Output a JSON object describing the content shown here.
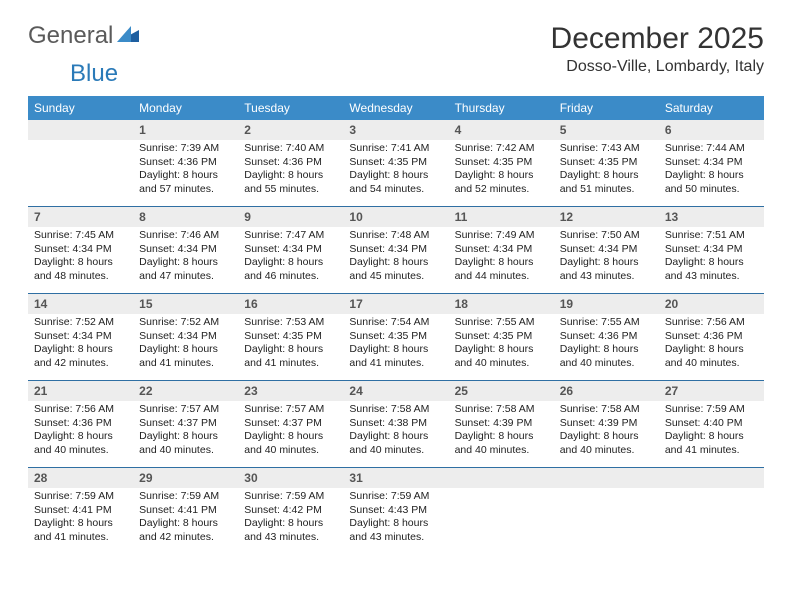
{
  "logo": {
    "general": "General",
    "blue": "Blue"
  },
  "title": "December 2025",
  "location": "Dosso-Ville, Lombardy, Italy",
  "colors": {
    "header_bg": "#3b8bc8",
    "header_text": "#ffffff",
    "row_border": "#2f6fa3",
    "daynum_bg": "#ededed",
    "logo_gray": "#5a5a5a",
    "logo_blue": "#2a7ab8"
  },
  "weekdays": [
    "Sunday",
    "Monday",
    "Tuesday",
    "Wednesday",
    "Thursday",
    "Friday",
    "Saturday"
  ],
  "weeks": [
    [
      {
        "n": "",
        "sr": "",
        "ss": "",
        "dl": ""
      },
      {
        "n": "1",
        "sr": "Sunrise: 7:39 AM",
        "ss": "Sunset: 4:36 PM",
        "dl": "Daylight: 8 hours and 57 minutes."
      },
      {
        "n": "2",
        "sr": "Sunrise: 7:40 AM",
        "ss": "Sunset: 4:36 PM",
        "dl": "Daylight: 8 hours and 55 minutes."
      },
      {
        "n": "3",
        "sr": "Sunrise: 7:41 AM",
        "ss": "Sunset: 4:35 PM",
        "dl": "Daylight: 8 hours and 54 minutes."
      },
      {
        "n": "4",
        "sr": "Sunrise: 7:42 AM",
        "ss": "Sunset: 4:35 PM",
        "dl": "Daylight: 8 hours and 52 minutes."
      },
      {
        "n": "5",
        "sr": "Sunrise: 7:43 AM",
        "ss": "Sunset: 4:35 PM",
        "dl": "Daylight: 8 hours and 51 minutes."
      },
      {
        "n": "6",
        "sr": "Sunrise: 7:44 AM",
        "ss": "Sunset: 4:34 PM",
        "dl": "Daylight: 8 hours and 50 minutes."
      }
    ],
    [
      {
        "n": "7",
        "sr": "Sunrise: 7:45 AM",
        "ss": "Sunset: 4:34 PM",
        "dl": "Daylight: 8 hours and 48 minutes."
      },
      {
        "n": "8",
        "sr": "Sunrise: 7:46 AM",
        "ss": "Sunset: 4:34 PM",
        "dl": "Daylight: 8 hours and 47 minutes."
      },
      {
        "n": "9",
        "sr": "Sunrise: 7:47 AM",
        "ss": "Sunset: 4:34 PM",
        "dl": "Daylight: 8 hours and 46 minutes."
      },
      {
        "n": "10",
        "sr": "Sunrise: 7:48 AM",
        "ss": "Sunset: 4:34 PM",
        "dl": "Daylight: 8 hours and 45 minutes."
      },
      {
        "n": "11",
        "sr": "Sunrise: 7:49 AM",
        "ss": "Sunset: 4:34 PM",
        "dl": "Daylight: 8 hours and 44 minutes."
      },
      {
        "n": "12",
        "sr": "Sunrise: 7:50 AM",
        "ss": "Sunset: 4:34 PM",
        "dl": "Daylight: 8 hours and 43 minutes."
      },
      {
        "n": "13",
        "sr": "Sunrise: 7:51 AM",
        "ss": "Sunset: 4:34 PM",
        "dl": "Daylight: 8 hours and 43 minutes."
      }
    ],
    [
      {
        "n": "14",
        "sr": "Sunrise: 7:52 AM",
        "ss": "Sunset: 4:34 PM",
        "dl": "Daylight: 8 hours and 42 minutes."
      },
      {
        "n": "15",
        "sr": "Sunrise: 7:52 AM",
        "ss": "Sunset: 4:34 PM",
        "dl": "Daylight: 8 hours and 41 minutes."
      },
      {
        "n": "16",
        "sr": "Sunrise: 7:53 AM",
        "ss": "Sunset: 4:35 PM",
        "dl": "Daylight: 8 hours and 41 minutes."
      },
      {
        "n": "17",
        "sr": "Sunrise: 7:54 AM",
        "ss": "Sunset: 4:35 PM",
        "dl": "Daylight: 8 hours and 41 minutes."
      },
      {
        "n": "18",
        "sr": "Sunrise: 7:55 AM",
        "ss": "Sunset: 4:35 PM",
        "dl": "Daylight: 8 hours and 40 minutes."
      },
      {
        "n": "19",
        "sr": "Sunrise: 7:55 AM",
        "ss": "Sunset: 4:36 PM",
        "dl": "Daylight: 8 hours and 40 minutes."
      },
      {
        "n": "20",
        "sr": "Sunrise: 7:56 AM",
        "ss": "Sunset: 4:36 PM",
        "dl": "Daylight: 8 hours and 40 minutes."
      }
    ],
    [
      {
        "n": "21",
        "sr": "Sunrise: 7:56 AM",
        "ss": "Sunset: 4:36 PM",
        "dl": "Daylight: 8 hours and 40 minutes."
      },
      {
        "n": "22",
        "sr": "Sunrise: 7:57 AM",
        "ss": "Sunset: 4:37 PM",
        "dl": "Daylight: 8 hours and 40 minutes."
      },
      {
        "n": "23",
        "sr": "Sunrise: 7:57 AM",
        "ss": "Sunset: 4:37 PM",
        "dl": "Daylight: 8 hours and 40 minutes."
      },
      {
        "n": "24",
        "sr": "Sunrise: 7:58 AM",
        "ss": "Sunset: 4:38 PM",
        "dl": "Daylight: 8 hours and 40 minutes."
      },
      {
        "n": "25",
        "sr": "Sunrise: 7:58 AM",
        "ss": "Sunset: 4:39 PM",
        "dl": "Daylight: 8 hours and 40 minutes."
      },
      {
        "n": "26",
        "sr": "Sunrise: 7:58 AM",
        "ss": "Sunset: 4:39 PM",
        "dl": "Daylight: 8 hours and 40 minutes."
      },
      {
        "n": "27",
        "sr": "Sunrise: 7:59 AM",
        "ss": "Sunset: 4:40 PM",
        "dl": "Daylight: 8 hours and 41 minutes."
      }
    ],
    [
      {
        "n": "28",
        "sr": "Sunrise: 7:59 AM",
        "ss": "Sunset: 4:41 PM",
        "dl": "Daylight: 8 hours and 41 minutes."
      },
      {
        "n": "29",
        "sr": "Sunrise: 7:59 AM",
        "ss": "Sunset: 4:41 PM",
        "dl": "Daylight: 8 hours and 42 minutes."
      },
      {
        "n": "30",
        "sr": "Sunrise: 7:59 AM",
        "ss": "Sunset: 4:42 PM",
        "dl": "Daylight: 8 hours and 43 minutes."
      },
      {
        "n": "31",
        "sr": "Sunrise: 7:59 AM",
        "ss": "Sunset: 4:43 PM",
        "dl": "Daylight: 8 hours and 43 minutes."
      },
      {
        "n": "",
        "sr": "",
        "ss": "",
        "dl": ""
      },
      {
        "n": "",
        "sr": "",
        "ss": "",
        "dl": ""
      },
      {
        "n": "",
        "sr": "",
        "ss": "",
        "dl": ""
      }
    ]
  ]
}
